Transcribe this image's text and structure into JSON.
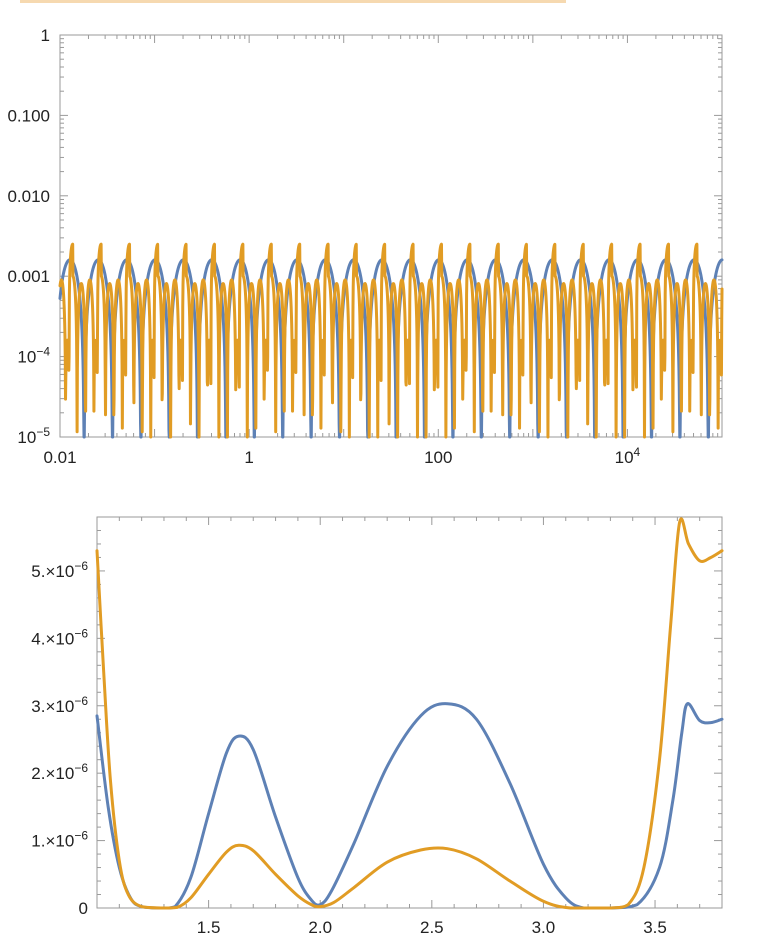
{
  "colors": {
    "series_blue": "#5e81b5",
    "series_orange": "#e19c24",
    "header_strip": "#f6d9b0"
  },
  "chart_data": [
    {
      "type": "line",
      "x_scale": "log",
      "y_scale": "log",
      "xlim": [
        0.01,
        100000
      ],
      "ylim": [
        1e-05,
        1
      ],
      "x_ticks": [
        {
          "value": 0.01,
          "label": "0.01"
        },
        {
          "value": 1,
          "label": "1"
        },
        {
          "value": 100,
          "label": "100"
        },
        {
          "value": 10000,
          "label": "10",
          "exp": "4"
        }
      ],
      "y_ticks": [
        {
          "value": 1,
          "label": "1"
        },
        {
          "value": 0.1,
          "label": "0.100"
        },
        {
          "value": 0.01,
          "label": "0.010"
        },
        {
          "value": 0.001,
          "label": "0.001"
        },
        {
          "value": 0.0001,
          "label": "10",
          "exp": "−4"
        },
        {
          "value": 1e-05,
          "label": "10",
          "exp": "−5"
        }
      ],
      "series": [
        {
          "color": "#5e81b5",
          "description": "periodic in log10(x), period ~0.3 decades, peaks ~0.0016",
          "peak": 0.0016,
          "period_decades": 0.3,
          "phase_offset_decades": 0.3
        },
        {
          "color": "#e19c24",
          "description": "periodic in log10(x), period ~0.3 decades, sharp spikes ~0.0025 then smooth humps ~0.0009",
          "spike": 0.0025,
          "hump": 0.0009,
          "min": 4e-05,
          "period_decades": 0.3
        }
      ]
    },
    {
      "type": "line",
      "xlim": [
        1.0,
        3.8
      ],
      "ylim": [
        0,
        5.8e-06
      ],
      "x_ticks": [
        {
          "value": 1.5,
          "label": "1.5"
        },
        {
          "value": 2.0,
          "label": "2.0"
        },
        {
          "value": 2.5,
          "label": "2.5"
        },
        {
          "value": 3.0,
          "label": "3.0"
        },
        {
          "value": 3.5,
          "label": "3.5"
        }
      ],
      "y_ticks": [
        {
          "value": 0,
          "label": "0"
        },
        {
          "value": 1e-06,
          "label": "1.×10",
          "exp": "−6"
        },
        {
          "value": 2e-06,
          "label": "2.×10",
          "exp": "−6"
        },
        {
          "value": 3e-06,
          "label": "3.×10",
          "exp": "−6"
        },
        {
          "value": 4e-06,
          "label": "4.×10",
          "exp": "−6"
        },
        {
          "value": 5e-06,
          "label": "5.×10",
          "exp": "−6"
        }
      ],
      "series": [
        {
          "color": "#5e81b5",
          "points": [
            [
              1.0,
              2.85e-06
            ],
            [
              1.05,
              1.5e-06
            ],
            [
              1.1,
              6e-07
            ],
            [
              1.15,
              1.5e-07
            ],
            [
              1.2,
              2e-08
            ],
            [
              1.3,
              0.0
            ],
            [
              1.35,
              2e-08
            ],
            [
              1.42,
              4.5e-07
            ],
            [
              1.5,
              1.4e-06
            ],
            [
              1.58,
              2.3e-06
            ],
            [
              1.635,
              2.55e-06
            ],
            [
              1.7,
              2.35e-06
            ],
            [
              1.8,
              1.35e-06
            ],
            [
              1.9,
              4.5e-07
            ],
            [
              1.96,
              1.2e-07
            ],
            [
              2.0,
              5e-08
            ],
            [
              2.05,
              2.5e-07
            ],
            [
              2.15,
              9.5e-07
            ],
            [
              2.3,
              2.1e-06
            ],
            [
              2.45,
              2.85e-06
            ],
            [
              2.57,
              3.03e-06
            ],
            [
              2.7,
              2.8e-06
            ],
            [
              2.85,
              1.85e-06
            ],
            [
              3.0,
              6.5e-07
            ],
            [
              3.1,
              1.5e-07
            ],
            [
              3.18,
              0.0
            ],
            [
              3.3,
              0.0
            ],
            [
              3.42,
              5e-08
            ],
            [
              3.52,
              6e-07
            ],
            [
              3.58,
              1.6e-06
            ],
            [
              3.62,
              2.6e-06
            ],
            [
              3.645,
              3.03e-06
            ],
            [
              3.7,
              2.78e-06
            ],
            [
              3.75,
              2.75e-06
            ],
            [
              3.8,
              2.8e-06
            ]
          ]
        },
        {
          "color": "#e19c24",
          "points": [
            [
              1.0,
              5.3e-06
            ],
            [
              1.03,
              3.5e-06
            ],
            [
              1.06,
              1.9e-06
            ],
            [
              1.1,
              7e-07
            ],
            [
              1.14,
              2e-07
            ],
            [
              1.2,
              2e-08
            ],
            [
              1.3,
              0.0
            ],
            [
              1.36,
              1e-08
            ],
            [
              1.42,
              1.5e-07
            ],
            [
              1.5,
              5e-07
            ],
            [
              1.58,
              8.3e-07
            ],
            [
              1.635,
              9.3e-07
            ],
            [
              1.7,
              8.5e-07
            ],
            [
              1.8,
              5e-07
            ],
            [
              1.9,
              1.8e-07
            ],
            [
              1.96,
              5e-08
            ],
            [
              2.0,
              2e-08
            ],
            [
              2.06,
              8e-08
            ],
            [
              2.15,
              3e-07
            ],
            [
              2.3,
              6.8e-07
            ],
            [
              2.45,
              8.6e-07
            ],
            [
              2.57,
              8.8e-07
            ],
            [
              2.7,
              7.3e-07
            ],
            [
              2.85,
              4e-07
            ],
            [
              3.0,
              1e-07
            ],
            [
              3.12,
              0.0
            ],
            [
              3.3,
              0.0
            ],
            [
              3.38,
              5e-08
            ],
            [
              3.45,
              6e-07
            ],
            [
              3.52,
              2.2e-06
            ],
            [
              3.57,
              4.2e-06
            ],
            [
              3.61,
              5.72e-06
            ],
            [
              3.65,
              5.4e-06
            ],
            [
              3.7,
              5.15e-06
            ],
            [
              3.75,
              5.2e-06
            ],
            [
              3.8,
              5.3e-06
            ]
          ]
        }
      ]
    }
  ]
}
